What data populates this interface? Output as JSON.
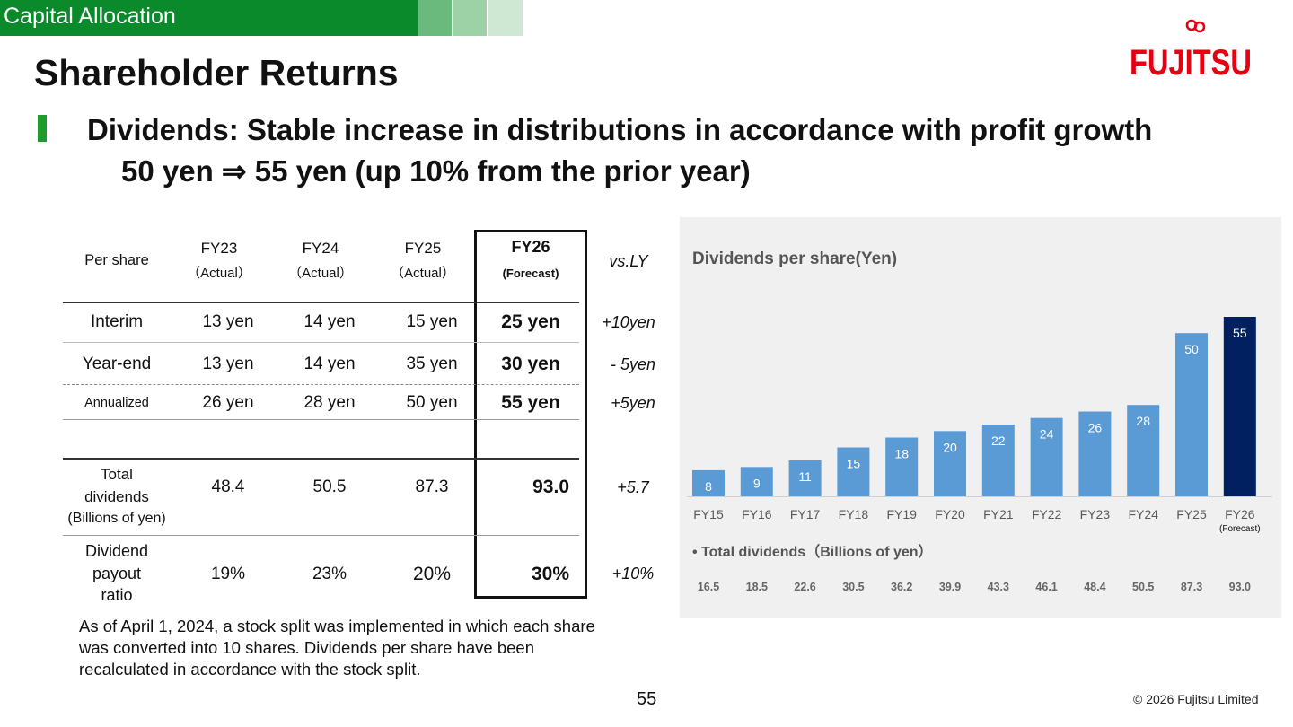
{
  "header": {
    "section": "Capital Allocation",
    "title": "Shareholder Returns",
    "subtitle_line1": "Dividends: Stable increase in distributions in accordance with profit growth",
    "subtitle_line2": "50 yen ⇒ 55 yen (up 10% from the prior year)"
  },
  "colors": {
    "band_green": "#0b8a2c",
    "band_squares": [
      "#6bba7d",
      "#9dd1a6",
      "#cfe8d4"
    ],
    "logo_red": "#e60012",
    "bar_blue": "#5b9bd5",
    "bar_navy": "#002060"
  },
  "logo": {
    "text": "FUJITSU"
  },
  "table": {
    "corner_label": "Per share",
    "columns": [
      {
        "year": "FY23",
        "status": "（Actual）"
      },
      {
        "year": "FY24",
        "status": "（Actual）"
      },
      {
        "year": "FY25",
        "status": "（Actual）"
      },
      {
        "year": "FY26",
        "status": "(Forecast)"
      }
    ],
    "vs_label": "vs.LY",
    "rows": [
      {
        "label": "Interim",
        "values": [
          "13 yen",
          "14 yen",
          "15 yen",
          "25 yen"
        ],
        "vs": "+10yen"
      },
      {
        "label": "Year-end",
        "values": [
          "13 yen",
          "14 yen",
          "35 yen",
          "30 yen"
        ],
        "vs": "- 5yen"
      },
      {
        "label": "Annualized",
        "values": [
          "26 yen",
          "28 yen",
          "50 yen",
          "55 yen"
        ],
        "vs": "+5yen"
      },
      {
        "label_lines": [
          "Total",
          "dividends",
          "(Billions of yen)"
        ],
        "values": [
          "48.4",
          "50.5",
          "87.3",
          "93.0"
        ],
        "vs": "+5.7"
      },
      {
        "label_lines": [
          "Dividend",
          "payout",
          "ratio"
        ],
        "values": [
          "19%",
          "23%",
          "20%",
          "30%"
        ],
        "vs": "+10%"
      }
    ]
  },
  "footnote": "As of April 1, 2024, a stock split was implemented in which each share was converted into 10 shares. Dividends per share have been recalculated in accordance with the stock split.",
  "chart_data": {
    "type": "bar",
    "title": "Dividends per share(Yen)",
    "categories": [
      "FY15",
      "FY16",
      "FY17",
      "FY18",
      "FY19",
      "FY20",
      "FY21",
      "FY22",
      "FY23",
      "FY24",
      "FY25",
      "FY26"
    ],
    "values": [
      8,
      9,
      11,
      15,
      18,
      20,
      22,
      24,
      26,
      28,
      50,
      55
    ],
    "forecast_note": "(Forecast)",
    "highlight_category": "FY26",
    "secondary_title": "• Total dividends（Billions of yen）",
    "secondary_values": [
      "16.5",
      "18.5",
      "22.6",
      "30.5",
      "36.2",
      "39.9",
      "43.3",
      "46.1",
      "48.4",
      "50.5",
      "87.3",
      "93.0"
    ]
  },
  "footer": {
    "page_number": "55",
    "copyright": "© 2026 Fujitsu Limited"
  }
}
